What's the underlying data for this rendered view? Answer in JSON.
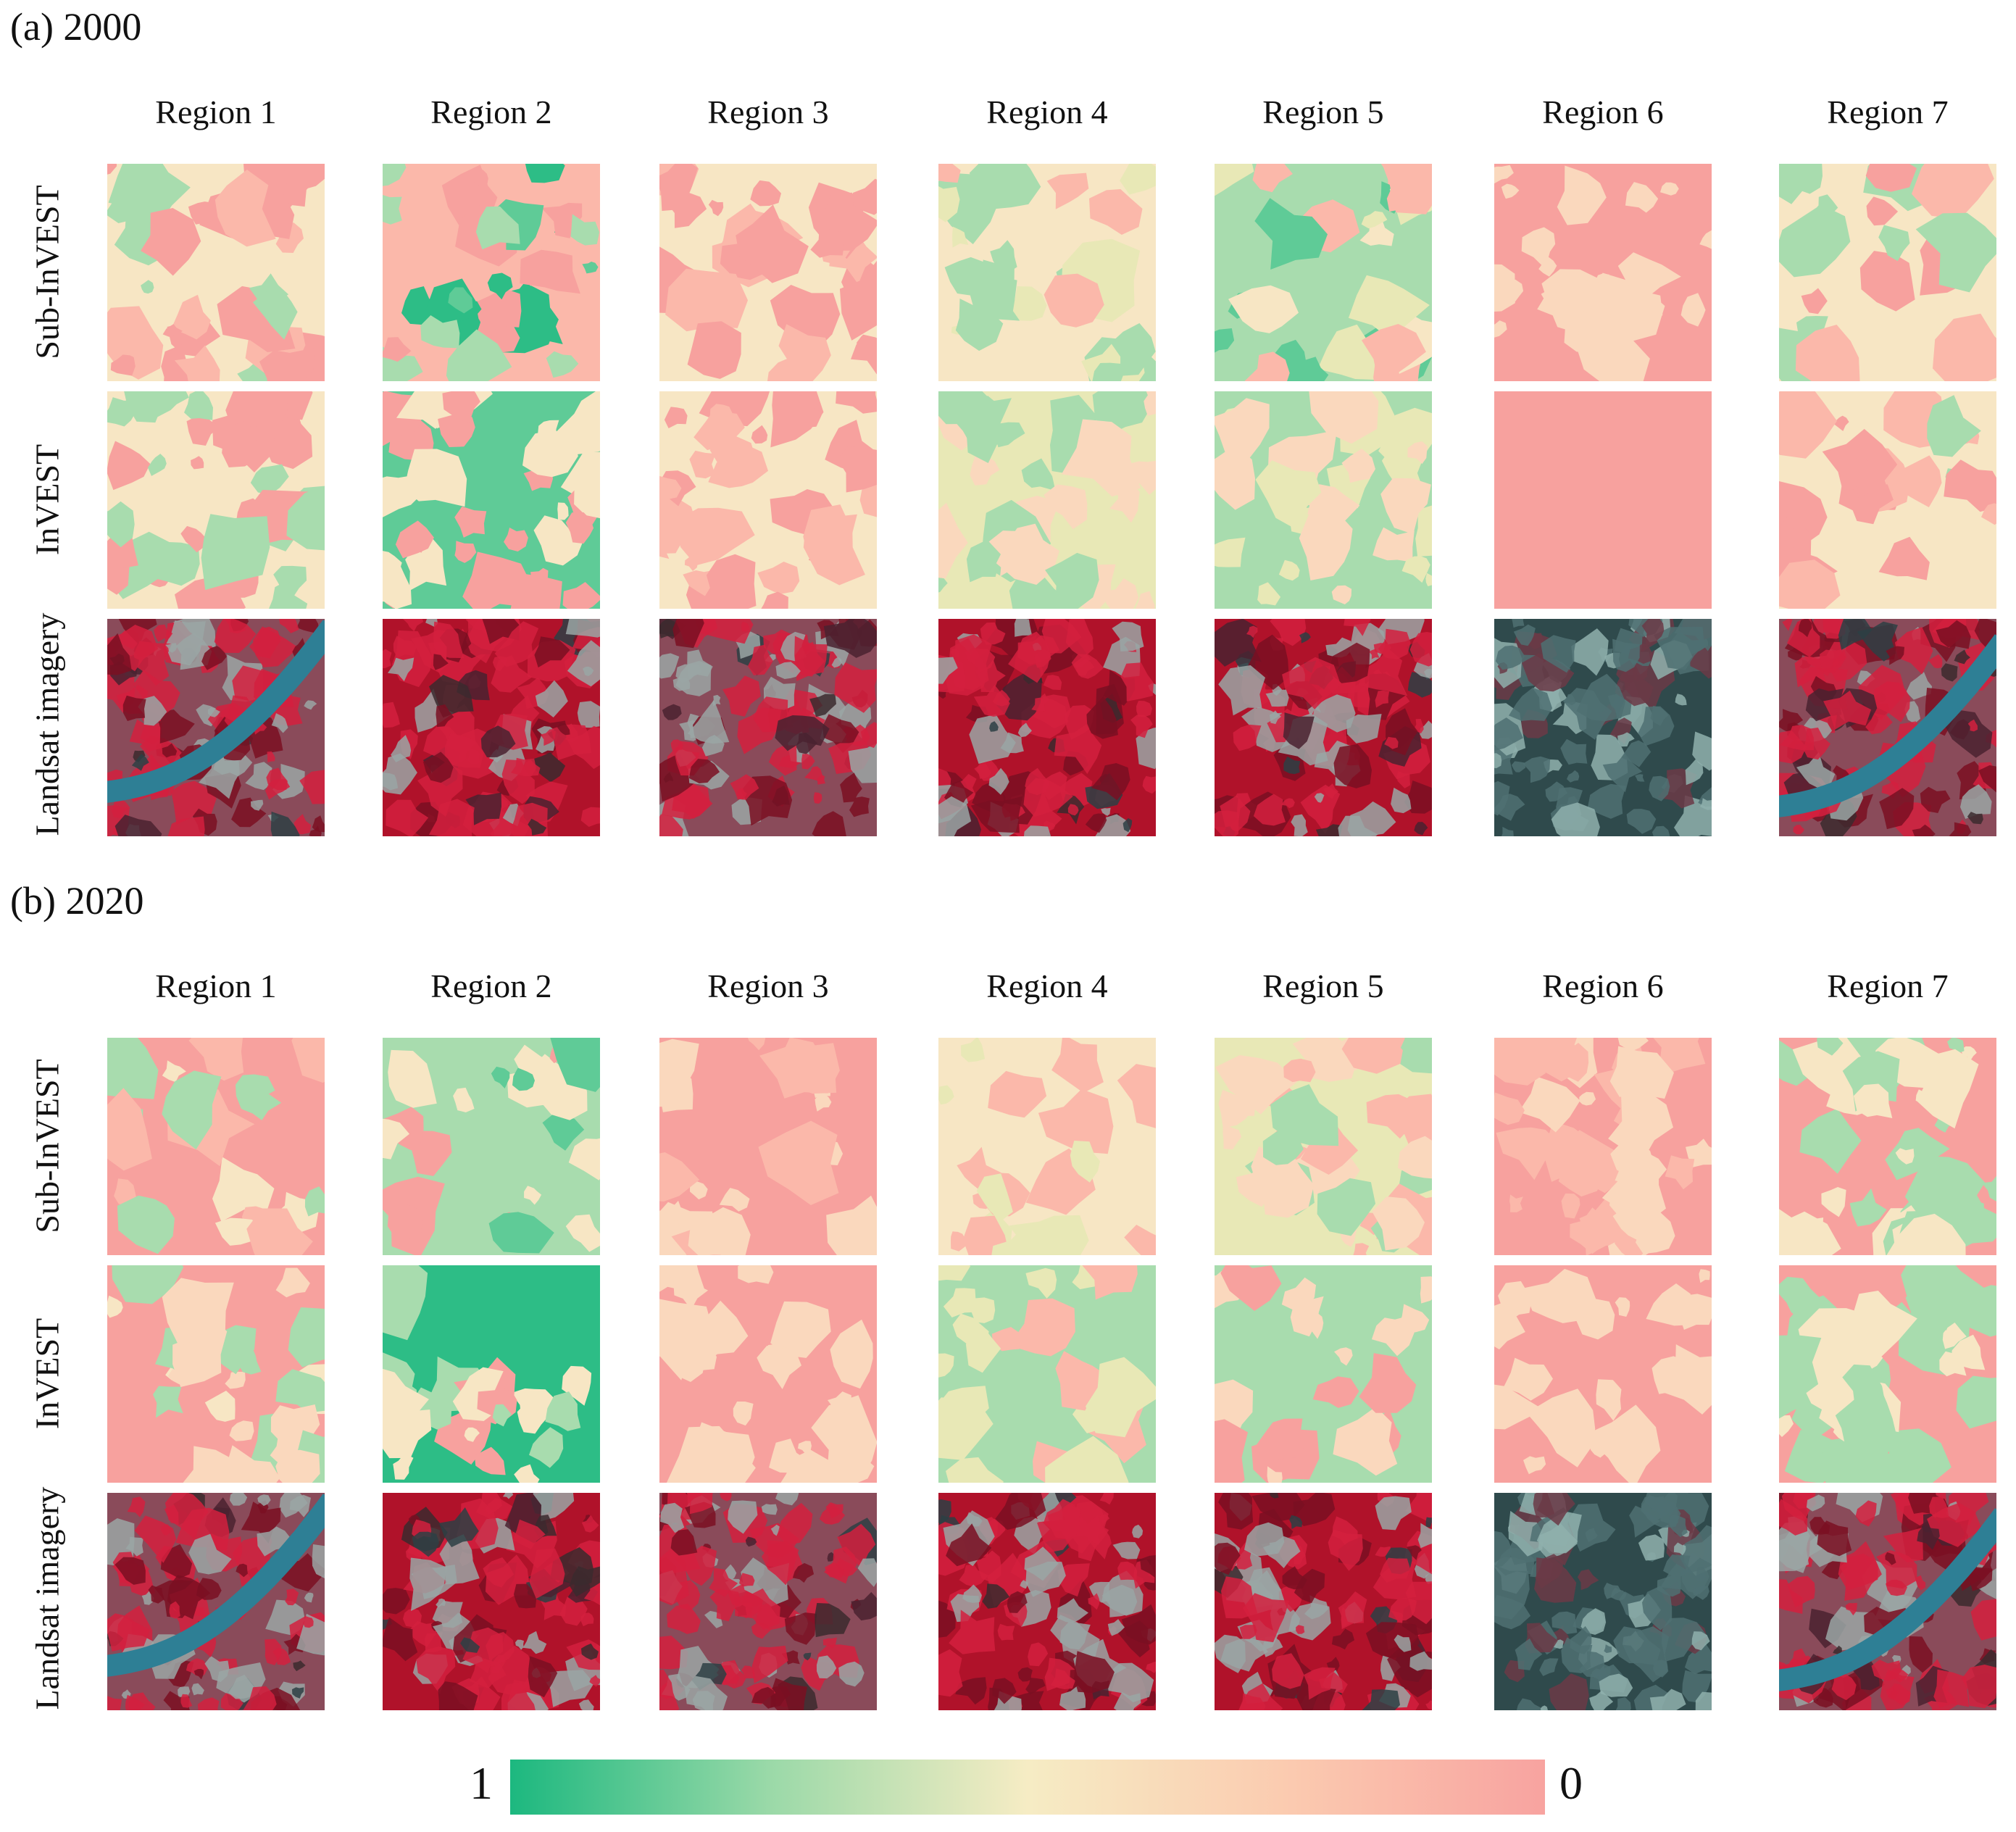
{
  "sections": [
    {
      "title": "(a) 2000"
    },
    {
      "title": "(b) 2020"
    }
  ],
  "regions": [
    "Region 1",
    "Region 2",
    "Region 3",
    "Region 4",
    "Region 5",
    "Region 6",
    "Region 7"
  ],
  "row_labels": [
    "Sub-InVEST",
    "InVEST",
    "Landsat imagery"
  ],
  "colorbar": {
    "min_label": "1",
    "max_label": "0",
    "stops": [
      "#1cb87f",
      "#9ad9a8",
      "#f6ecc4",
      "#fbcbb0",
      "#f8a3a0"
    ]
  }
}
